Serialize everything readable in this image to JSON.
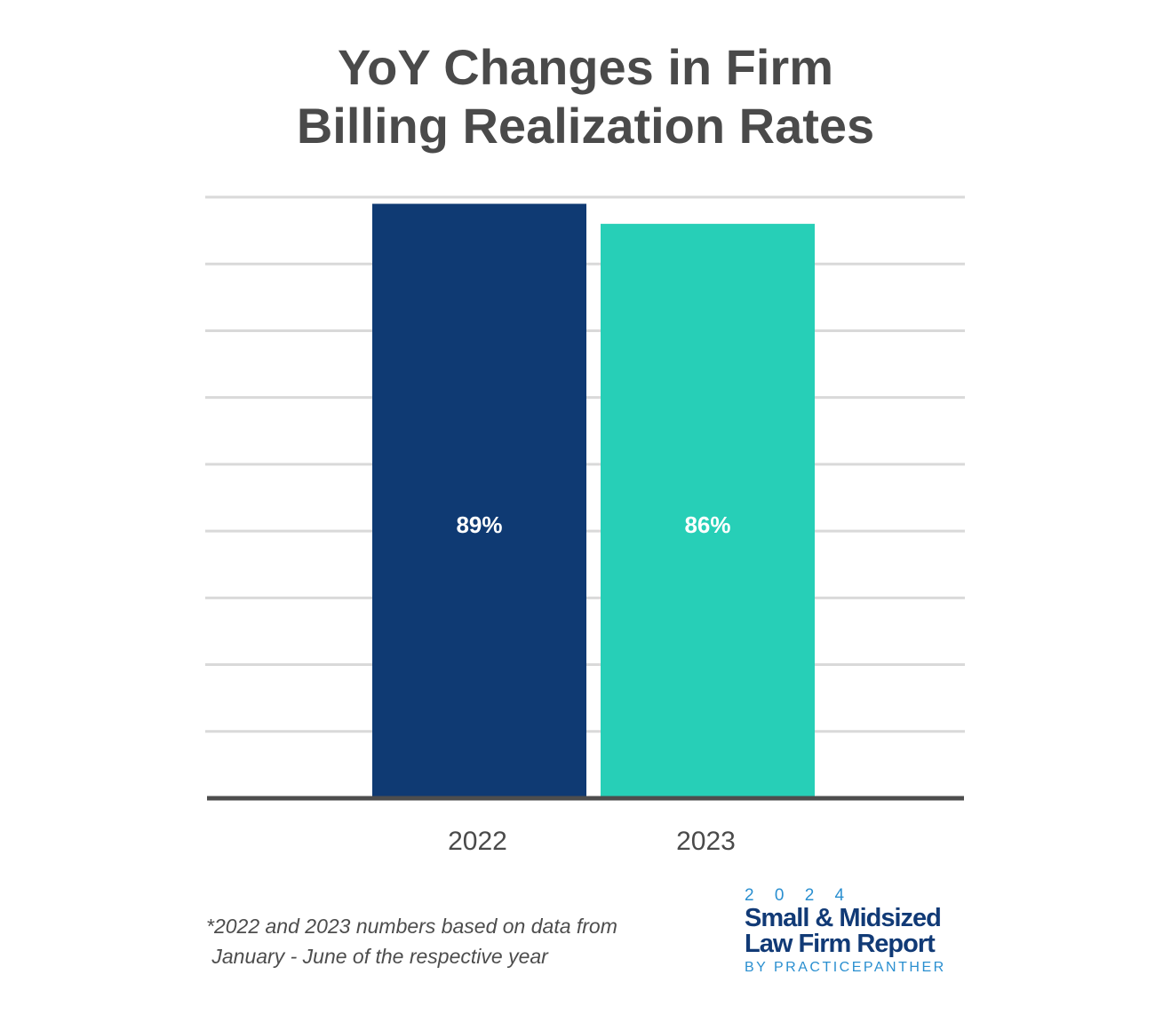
{
  "title_lines": [
    "YoY Changes in Firm",
    "Billing Realization Rates"
  ],
  "footnote_lines": [
    "*2022 and 2023 numbers based on data from",
    " January - June of the respective year"
  ],
  "logo": {
    "year": "2 0 2 4",
    "name_lines": [
      "Small & Midsized",
      "Law Firm Report"
    ],
    "byline": "BY PRACTICEPANTHER"
  },
  "chart_data": {
    "type": "bar",
    "title": "YoY Changes in Firm Billing Realization Rates",
    "categories": [
      "2022",
      "2023"
    ],
    "values": [
      89,
      86
    ],
    "data_labels": [
      "89%",
      "86%"
    ],
    "colors": [
      "#0f3a73",
      "#27cfb7"
    ],
    "xlabel": "",
    "ylabel": "",
    "ylim": [
      0,
      90
    ],
    "grid": true,
    "legend": "none"
  }
}
